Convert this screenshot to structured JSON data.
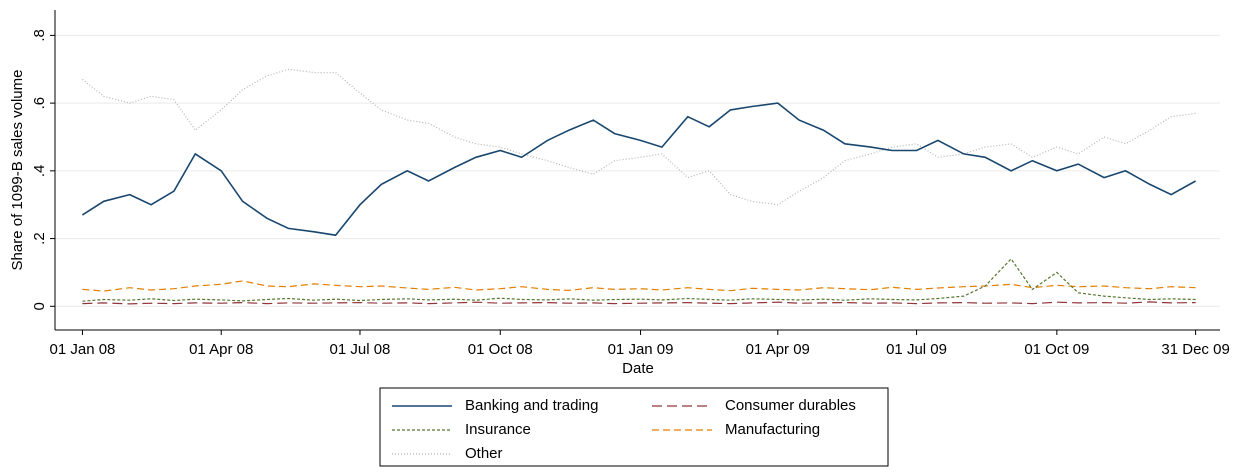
{
  "chart_data": {
    "type": "line",
    "y_label": "Share of 1099-B sales volume",
    "x_label": "Date",
    "x": [
      "2008-01-01",
      "2008-01-15",
      "2008-02-01",
      "2008-02-15",
      "2008-03-01",
      "2008-03-15",
      "2008-04-01",
      "2008-04-15",
      "2008-05-01",
      "2008-05-15",
      "2008-06-01",
      "2008-06-15",
      "2008-07-01",
      "2008-07-15",
      "2008-08-01",
      "2008-08-15",
      "2008-09-01",
      "2008-09-15",
      "2008-10-01",
      "2008-10-15",
      "2008-11-01",
      "2008-11-15",
      "2008-12-01",
      "2008-12-15",
      "2009-01-01",
      "2009-01-15",
      "2009-02-01",
      "2009-02-15",
      "2009-03-01",
      "2009-03-15",
      "2009-04-01",
      "2009-04-15",
      "2009-05-01",
      "2009-05-15",
      "2009-06-01",
      "2009-06-15",
      "2009-07-01",
      "2009-07-15",
      "2009-08-01",
      "2009-08-15",
      "2009-09-01",
      "2009-09-15",
      "2009-10-01",
      "2009-10-15",
      "2009-11-01",
      "2009-11-15",
      "2009-12-01",
      "2009-12-15",
      "2009-12-31"
    ],
    "series": [
      {
        "name": "Banking and trading",
        "color": "#1a476f",
        "dash": "none",
        "values": [
          0.27,
          0.31,
          0.33,
          0.3,
          0.34,
          0.45,
          0.4,
          0.31,
          0.26,
          0.23,
          0.22,
          0.21,
          0.3,
          0.36,
          0.4,
          0.37,
          0.41,
          0.44,
          0.46,
          0.44,
          0.49,
          0.52,
          0.55,
          0.51,
          0.49,
          0.47,
          0.56,
          0.53,
          0.58,
          0.59,
          0.6,
          0.55,
          0.52,
          0.48,
          0.47,
          0.46,
          0.46,
          0.49,
          0.45,
          0.44,
          0.4,
          0.43,
          0.4,
          0.42,
          0.38,
          0.4,
          0.36,
          0.33,
          0.37
        ]
      },
      {
        "name": "Consumer durables",
        "color": "#90353b",
        "dash": "10 5",
        "values": [
          0.008,
          0.01,
          0.007,
          0.009,
          0.008,
          0.01,
          0.009,
          0.011,
          0.008,
          0.01,
          0.009,
          0.01,
          0.011,
          0.009,
          0.01,
          0.008,
          0.01,
          0.012,
          0.009,
          0.01,
          0.011,
          0.009,
          0.01,
          0.008,
          0.009,
          0.01,
          0.011,
          0.009,
          0.008,
          0.01,
          0.012,
          0.009,
          0.01,
          0.011,
          0.009,
          0.01,
          0.008,
          0.01,
          0.011,
          0.009,
          0.01,
          0.008,
          0.012,
          0.01,
          0.011,
          0.009,
          0.013,
          0.01,
          0.011
        ]
      },
      {
        "name": "Insurance",
        "color": "#55752f",
        "dash": "3 2",
        "values": [
          0.015,
          0.02,
          0.018,
          0.022,
          0.017,
          0.021,
          0.019,
          0.016,
          0.02,
          0.023,
          0.018,
          0.021,
          0.017,
          0.02,
          0.022,
          0.019,
          0.021,
          0.018,
          0.024,
          0.02,
          0.019,
          0.022,
          0.018,
          0.02,
          0.021,
          0.019,
          0.023,
          0.02,
          0.018,
          0.022,
          0.02,
          0.019,
          0.021,
          0.018,
          0.022,
          0.02,
          0.019,
          0.023,
          0.03,
          0.06,
          0.14,
          0.05,
          0.1,
          0.04,
          0.03,
          0.025,
          0.02,
          0.022,
          0.02
        ]
      },
      {
        "name": "Manufacturing",
        "color": "#e37e00",
        "dash": "7 4",
        "values": [
          0.05,
          0.045,
          0.055,
          0.048,
          0.052,
          0.06,
          0.065,
          0.075,
          0.06,
          0.058,
          0.066,
          0.062,
          0.058,
          0.06,
          0.054,
          0.05,
          0.056,
          0.048,
          0.052,
          0.058,
          0.05,
          0.047,
          0.055,
          0.05,
          0.052,
          0.048,
          0.055,
          0.05,
          0.046,
          0.053,
          0.05,
          0.048,
          0.055,
          0.052,
          0.049,
          0.056,
          0.05,
          0.054,
          0.058,
          0.06,
          0.065,
          0.055,
          0.062,
          0.058,
          0.06,
          0.055,
          0.052,
          0.058,
          0.055
        ]
      },
      {
        "name": "Other",
        "color": "#b4b4b4",
        "dash": "1 2",
        "values": [
          0.67,
          0.62,
          0.6,
          0.62,
          0.61,
          0.52,
          0.58,
          0.64,
          0.68,
          0.7,
          0.69,
          0.69,
          0.63,
          0.58,
          0.55,
          0.54,
          0.5,
          0.48,
          0.47,
          0.45,
          0.43,
          0.41,
          0.39,
          0.43,
          0.44,
          0.45,
          0.38,
          0.4,
          0.33,
          0.31,
          0.3,
          0.34,
          0.38,
          0.43,
          0.45,
          0.47,
          0.48,
          0.44,
          0.45,
          0.47,
          0.48,
          0.44,
          0.47,
          0.45,
          0.5,
          0.48,
          0.52,
          0.56,
          0.57
        ]
      }
    ],
    "xlim": [
      "2007-12-14",
      "2010-01-16"
    ],
    "xticks": [
      {
        "value": "2008-01-01",
        "label": "01 Jan 08"
      },
      {
        "value": "2008-04-01",
        "label": "01 Apr 08"
      },
      {
        "value": "2008-07-01",
        "label": "01 Jul 08"
      },
      {
        "value": "2008-10-01",
        "label": "01 Oct 08"
      },
      {
        "value": "2009-01-01",
        "label": "01 Jan 09"
      },
      {
        "value": "2009-04-01",
        "label": "01 Apr 09"
      },
      {
        "value": "2009-07-01",
        "label": "01 Jul 09"
      },
      {
        "value": "2009-10-01",
        "label": "01 Oct 09"
      },
      {
        "value": "2009-12-31",
        "label": "31 Dec 09"
      }
    ],
    "ylim": [
      -0.07,
      0.875
    ],
    "yticks": [
      0,
      {
        "value": 0.2,
        "label": ".2"
      },
      {
        "value": 0.4,
        "label": ".4"
      },
      {
        "value": 0.6,
        "label": ".6"
      },
      {
        "value": 0.8,
        "label": ".8"
      }
    ],
    "grid": true,
    "legend": "bottom"
  }
}
